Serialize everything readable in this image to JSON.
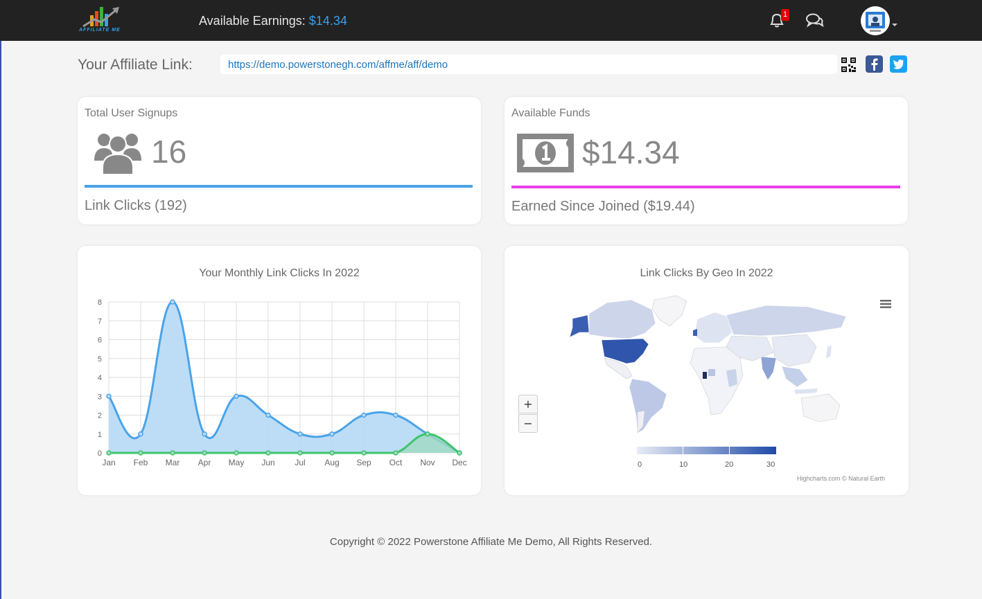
{
  "header": {
    "logo_text": "AFFILIATE ME",
    "earnings_label": "Available Earnings:",
    "earnings_value": "$14.34",
    "notifications_count": "1",
    "icons": {
      "logo": "affiliate-me-logo",
      "notifications": "bell-icon",
      "messages": "chat-icon",
      "user": "avatar",
      "menu": "chevron-down-icon"
    }
  },
  "affiliate": {
    "label": "Your Affiliate Link:",
    "url": "https://demo.powerstonegh.com/affme/aff/demo",
    "share_icons": [
      "qr-code-icon",
      "facebook-icon",
      "twitter-icon"
    ]
  },
  "cards": {
    "signups": {
      "title": "Total User Signups",
      "value": "16",
      "footer": "Link Clicks (192)",
      "accent": "#4aa3e8",
      "icon": "users-icon"
    },
    "funds": {
      "title": "Available Funds",
      "value": "$14.34",
      "footer": "Earned Since Joined ($19.44)",
      "accent": "#e83ee8",
      "icon": "money-bill-icon"
    }
  },
  "monthly_chart": {
    "title": "Your Monthly Link Clicks In 2022"
  },
  "geo_chart": {
    "title": "Link Clicks By Geo In 2022",
    "zoom_in": "+",
    "zoom_out": "−",
    "legend_ticks": [
      "0",
      "10",
      "20",
      "30"
    ],
    "credit": "Highcharts.com © Natural Earth",
    "color_min": "#e8ecf5",
    "color_max": "#1f4aa8"
  },
  "chart_data": [
    {
      "type": "line",
      "title": "Your Monthly Link Clicks In 2022",
      "categories": [
        "Jan",
        "Feb",
        "Mar",
        "Apr",
        "May",
        "Jun",
        "Jul",
        "Aug",
        "Sep",
        "Oct",
        "Nov",
        "Dec"
      ],
      "y_ticks": [
        "0",
        "1",
        "2",
        "3",
        "4",
        "5",
        "6",
        "7",
        "8"
      ],
      "ylim": [
        0,
        8
      ],
      "grid": true,
      "series": [
        {
          "values": [
            3,
            1,
            8,
            1,
            3,
            2,
            1,
            1,
            2,
            2,
            1,
            0
          ],
          "color": "#4aa3e8",
          "fill": "#b9dbf7"
        },
        {
          "values": [
            0,
            0,
            0,
            0,
            0,
            0,
            0,
            0,
            0,
            0,
            1,
            0
          ],
          "color": "#3cc46a",
          "fill": "#9fd9c2"
        }
      ]
    },
    {
      "type": "heatmap",
      "title": "Link Clicks By Geo In 2022",
      "colorbar_range": [
        0,
        30
      ],
      "colorbar_ticks": [
        0,
        10,
        20,
        30
      ]
    }
  ]
}
